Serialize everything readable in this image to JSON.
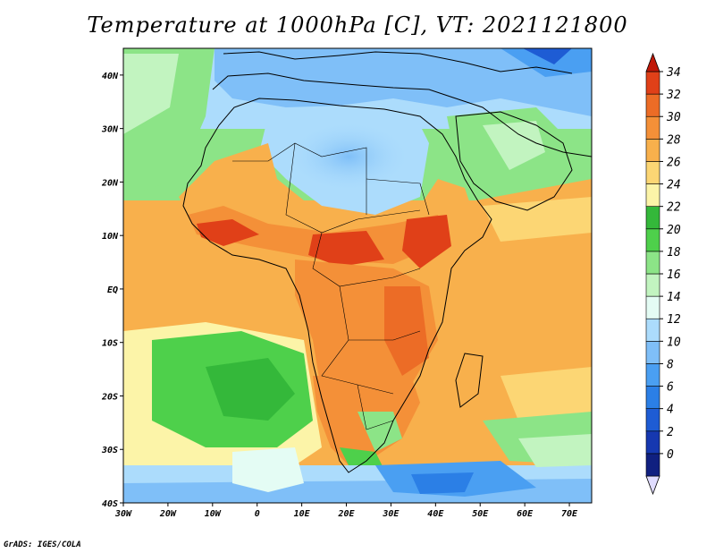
{
  "title": "Temperature at 1000hPa [C], VT: 2021121800",
  "credit": "GrADS: IGES/COLA",
  "map": {
    "lon_labels": [
      "30W",
      "20W",
      "10W",
      "0",
      "10E",
      "20E",
      "30E",
      "40E",
      "50E",
      "60E",
      "70E"
    ],
    "lat_labels": [
      "40N",
      "30N",
      "20N",
      "10N",
      "EQ",
      "10S",
      "20S",
      "30S",
      "40S"
    ],
    "lon_range": [
      -30,
      75
    ],
    "lat_range": [
      -40,
      45
    ]
  },
  "colorbar": {
    "labels": [
      "34",
      "32",
      "30",
      "28",
      "26",
      "24",
      "22",
      "20",
      "18",
      "16",
      "14",
      "12",
      "10",
      "8",
      "6",
      "4",
      "2",
      "0"
    ],
    "colors": [
      "#e0dcff",
      "#102080",
      "#1638b0",
      "#1e5cd4",
      "#2b7fe6",
      "#4a9ff2",
      "#7fbff8",
      "#acdcfc",
      "#e4fcf4",
      "#c2f4c0",
      "#8ce487",
      "#4ed04b",
      "#34b83a",
      "#fcf4a8",
      "#fcd674",
      "#f8b04c",
      "#f49038",
      "#ec6c26",
      "#e04018",
      "#c01808"
    ],
    "colors_note_order": "bottom-to-top"
  }
}
